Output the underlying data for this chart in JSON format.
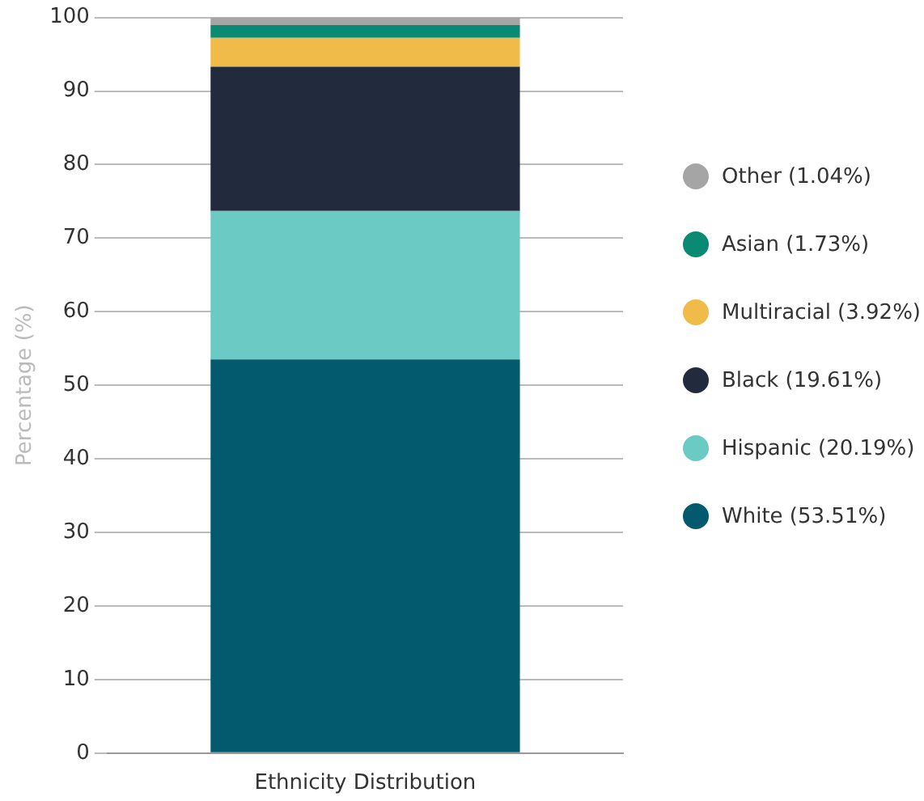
{
  "chart_data": {
    "type": "bar",
    "stacked": true,
    "categories": [
      "Ethnicity Distribution"
    ],
    "ylabel": "Percentage (%)",
    "ylim": [
      0,
      100
    ],
    "yticks": [
      0,
      10,
      20,
      30,
      40,
      50,
      60,
      70,
      80,
      90,
      100
    ],
    "grid": "y",
    "legend": "right",
    "series": [
      {
        "name": "White (53.51%)",
        "color": "#035a6e",
        "values": [
          53.51
        ]
      },
      {
        "name": "Hispanic (20.19%)",
        "color": "#6ccac4",
        "values": [
          20.19
        ]
      },
      {
        "name": "Black (19.61%)",
        "color": "#222b3d",
        "values": [
          19.61
        ]
      },
      {
        "name": "Multiracial (3.92%)",
        "color": "#f0bb48",
        "values": [
          3.92
        ]
      },
      {
        "name": "Asian (1.73%)",
        "color": "#0b8a73",
        "values": [
          1.73
        ]
      },
      {
        "name": "Other (1.04%)",
        "color": "#a5a5a5",
        "values": [
          1.04
        ]
      }
    ]
  }
}
